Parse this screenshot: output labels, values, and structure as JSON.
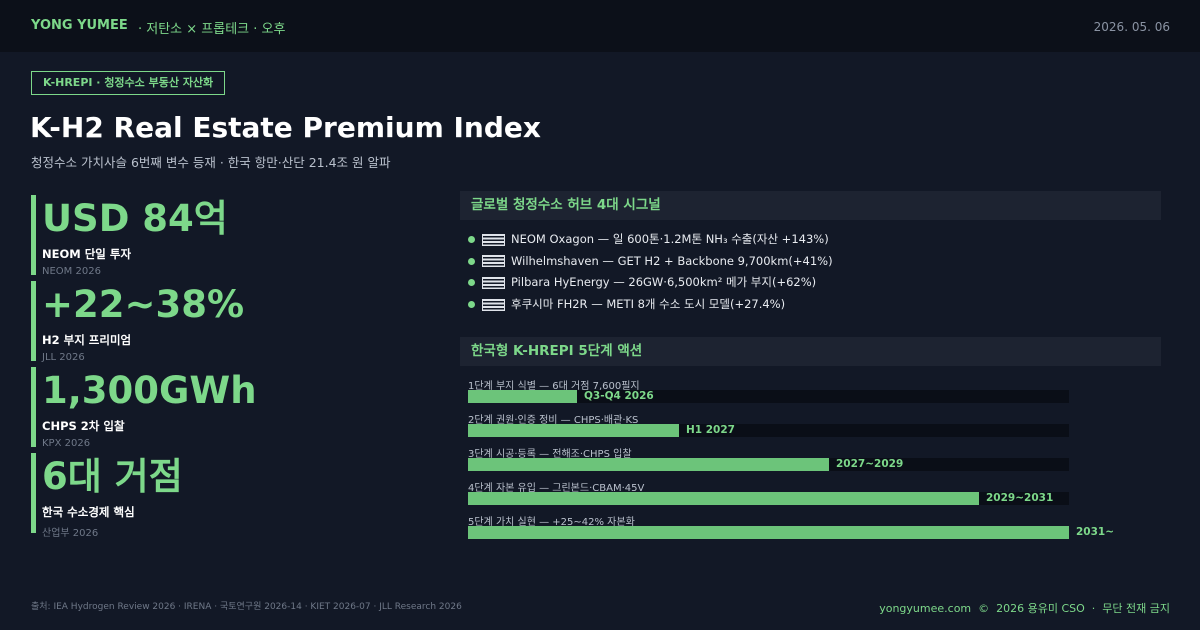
{
  "header": {
    "brand": "YONG YUMEE",
    "section": "저탄소 × 프롭테크 · 오후",
    "date": "2026. 05. 06"
  },
  "tag": "K-HREPI · 청정수소 부동산 자산화",
  "title": "K-H2 Real Estate Premium Index",
  "subtitle": "청정수소 가치사슬 6번째 변수 등재 · 한국 항만·산단 21.4조 원 알파",
  "stats": [
    {
      "value": "USD 84억",
      "label": "NEOM 단일 투자",
      "source": "NEOM 2026"
    },
    {
      "value": "+22~38%",
      "label": "H2 부지 프리미엄",
      "source": "JLL 2026"
    },
    {
      "value": "1,300GWh",
      "label": "CHPS 2차 입찰",
      "source": "KPX 2026"
    },
    {
      "value": "6대 거점",
      "label": "한국 수소경제 핵심",
      "source": "산업부 2026"
    }
  ],
  "signals": {
    "title": "글로벌 청정수소 허브 4대 시그널",
    "items": [
      "NEOM Oxagon — 일 600톤·1.2M톤 NH₃ 수출(자산 +143%)",
      "Wilhelmshaven — GET H2 + Backbone 9,700km(+41%)",
      "Pilbara HyEnergy — 26GW·6,500km² 메가 부지(+62%)",
      "후쿠시마 FH2R — METI 8개 수소 도시 모델(+27.4%)"
    ]
  },
  "actions": {
    "title": "한국형 K-HREPI 5단계 액션",
    "steps": [
      {
        "label": "1단계 부지 식별 — 6대 거점 7,600필지",
        "timing": "Q3-Q4 2026"
      },
      {
        "label": "2단계 권원·인증 정비 — CHPS·배관·KS",
        "timing": "H1 2027"
      },
      {
        "label": "3단계 시공·등록 — 전해조·CHPS 입찰",
        "timing": "2027~2029"
      },
      {
        "label": "4단계 자본 유입 — 그린본드·CBAM·45V",
        "timing": "2029~2031"
      },
      {
        "label": "5단계 가치 실현 — +25~42% 자본화",
        "timing": "2031~"
      }
    ]
  },
  "footer": {
    "sources": "출처: IEA Hydrogen Review 2026 · IRENA · 국토연구원 2026-14 · KIET 2026-07 · JLL Research 2026",
    "copyright": "yongyumee.com  ©  2026 용유미 CSO  ·  무단 전재 금지"
  }
}
